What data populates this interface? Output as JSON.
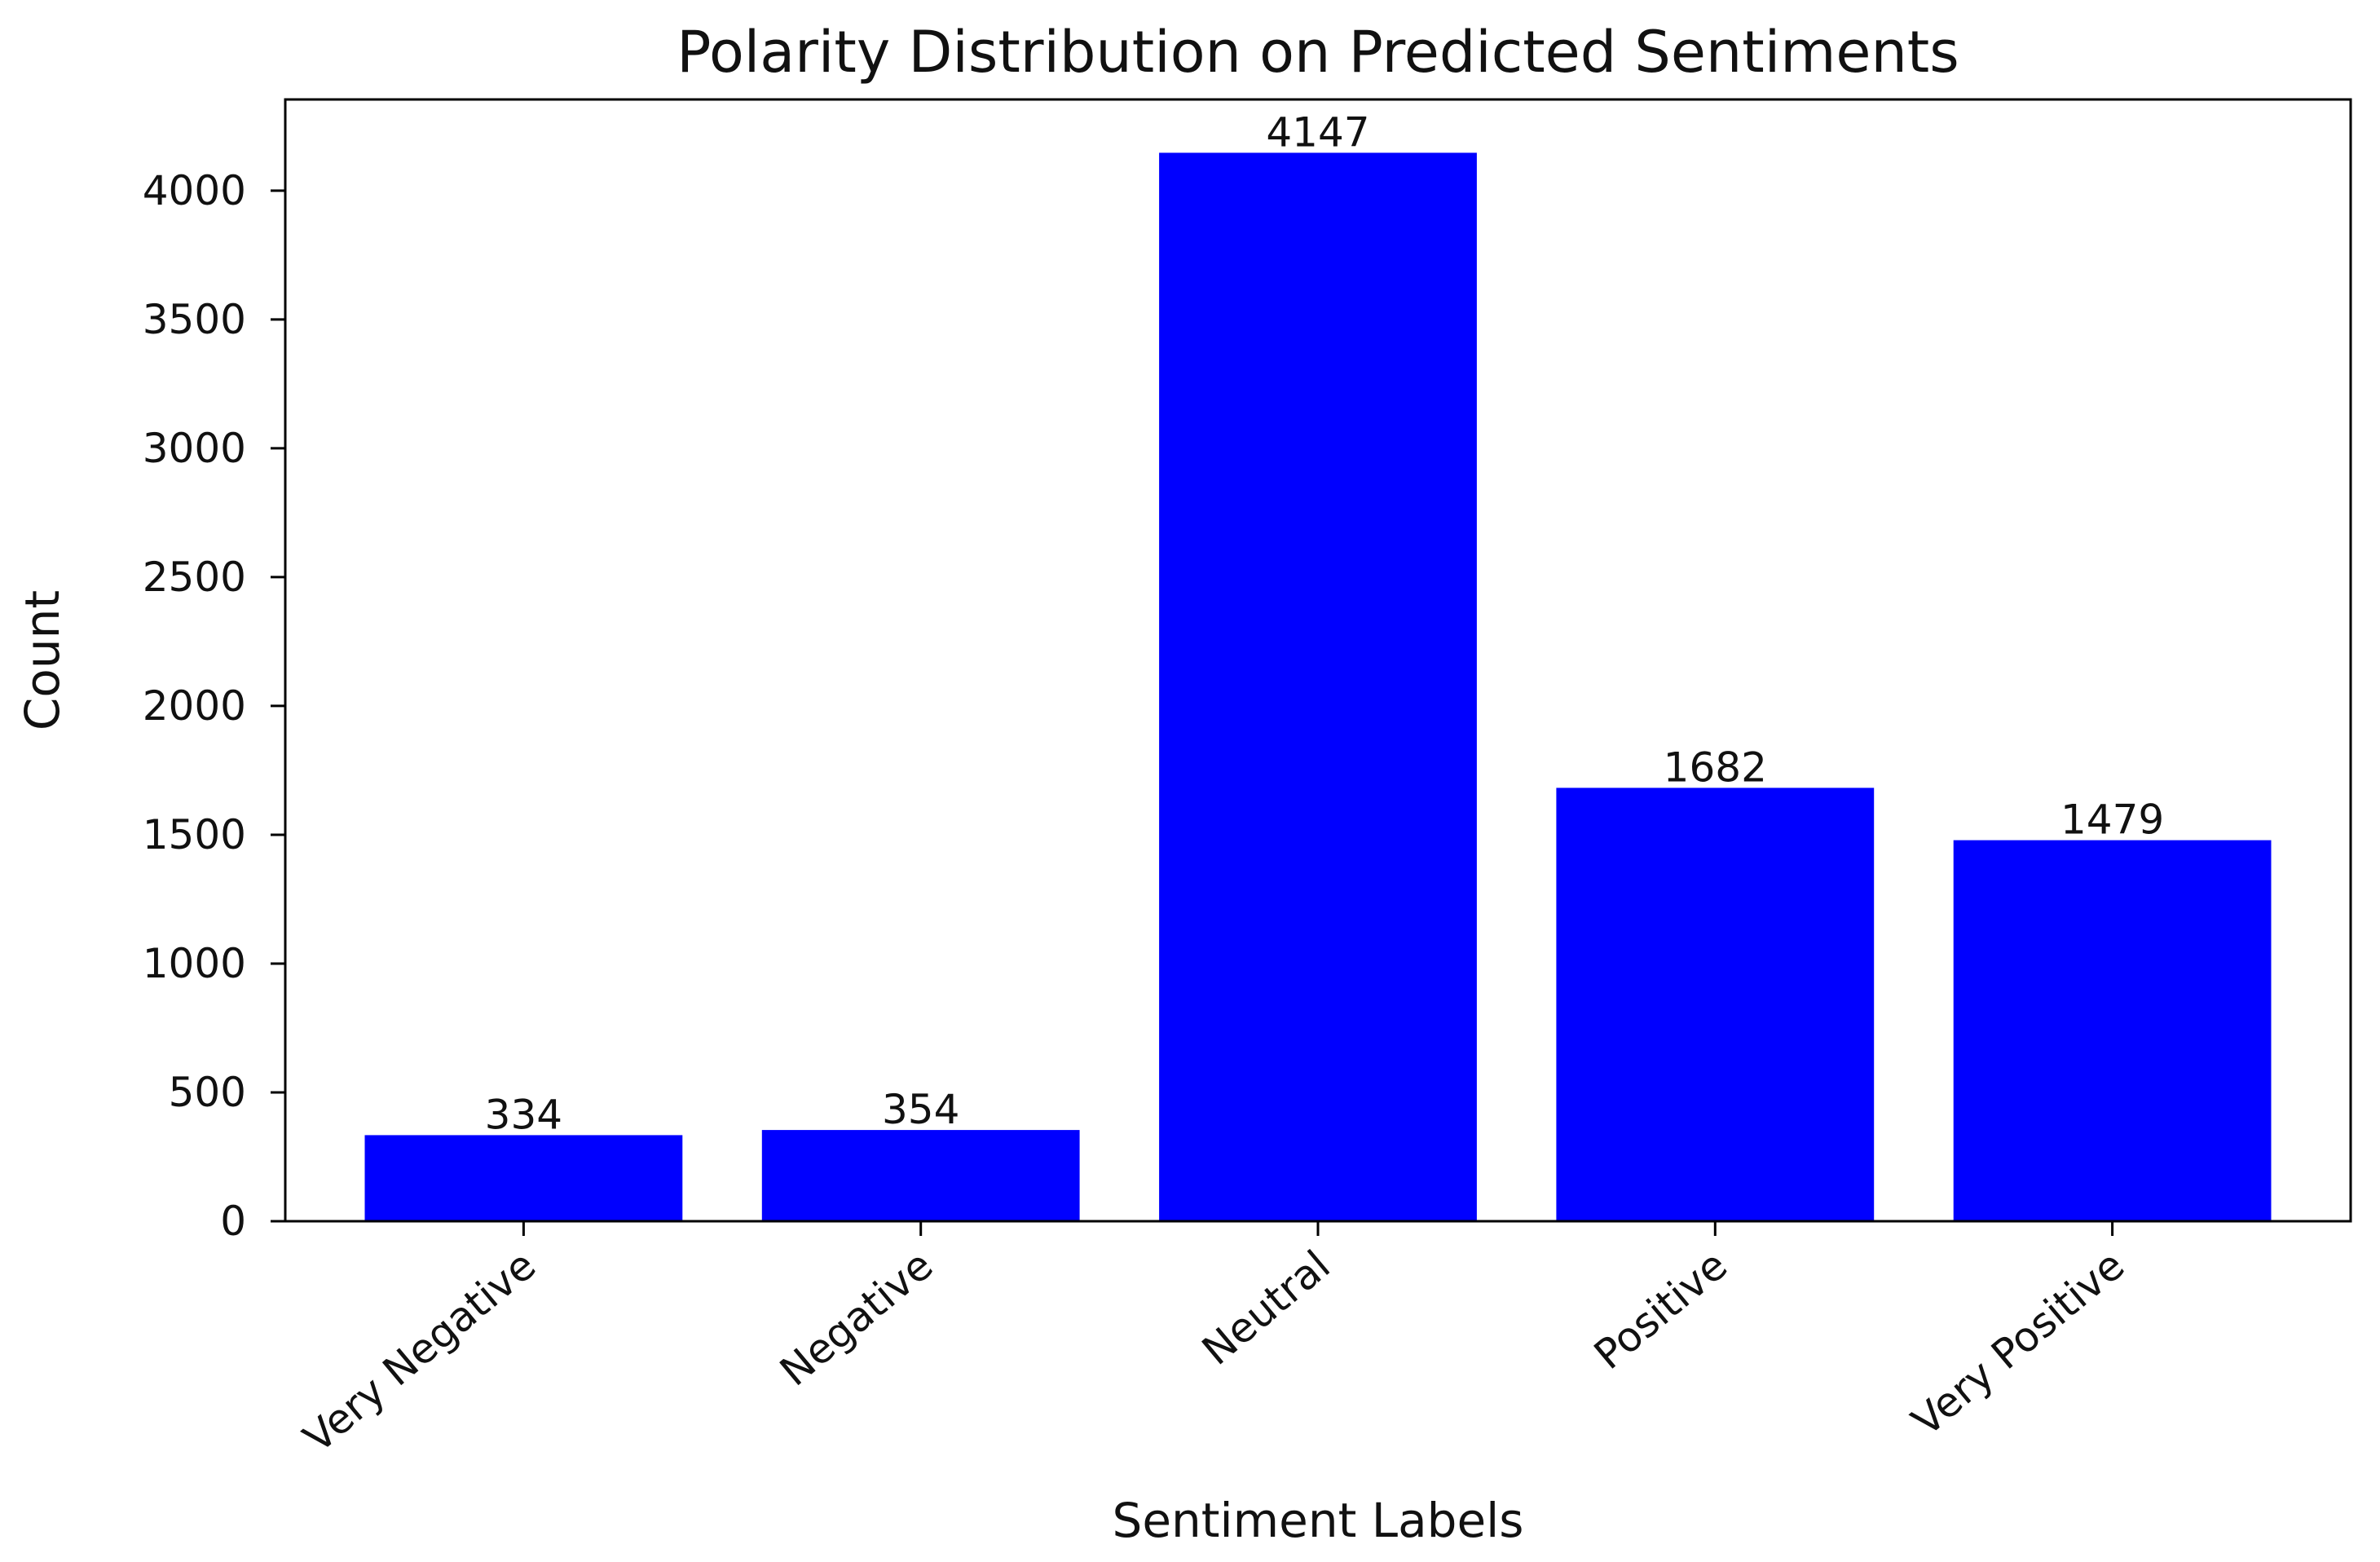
{
  "chart_data": {
    "type": "bar",
    "title": "Polarity Distribution on Predicted Sentiments",
    "xlabel": "Sentiment Labels",
    "ylabel": "Count",
    "categories": [
      "Very Negative",
      "Negative",
      "Neutral",
      "Positive",
      "Very Positive"
    ],
    "values": [
      334,
      354,
      4147,
      1682,
      1479
    ],
    "data_labels": [
      "334",
      "354",
      "4147",
      "1682",
      "1479"
    ],
    "yticks": [
      0,
      500,
      1000,
      1500,
      2000,
      2500,
      3000,
      3500,
      4000
    ],
    "ytick_labels": [
      "0",
      "500",
      "1000",
      "1500",
      "2000",
      "2500",
      "3000",
      "3500",
      "4000"
    ],
    "ylim": [
      0,
      4354
    ],
    "bar_color": "#0000ff",
    "grid": false,
    "legend": "none"
  }
}
